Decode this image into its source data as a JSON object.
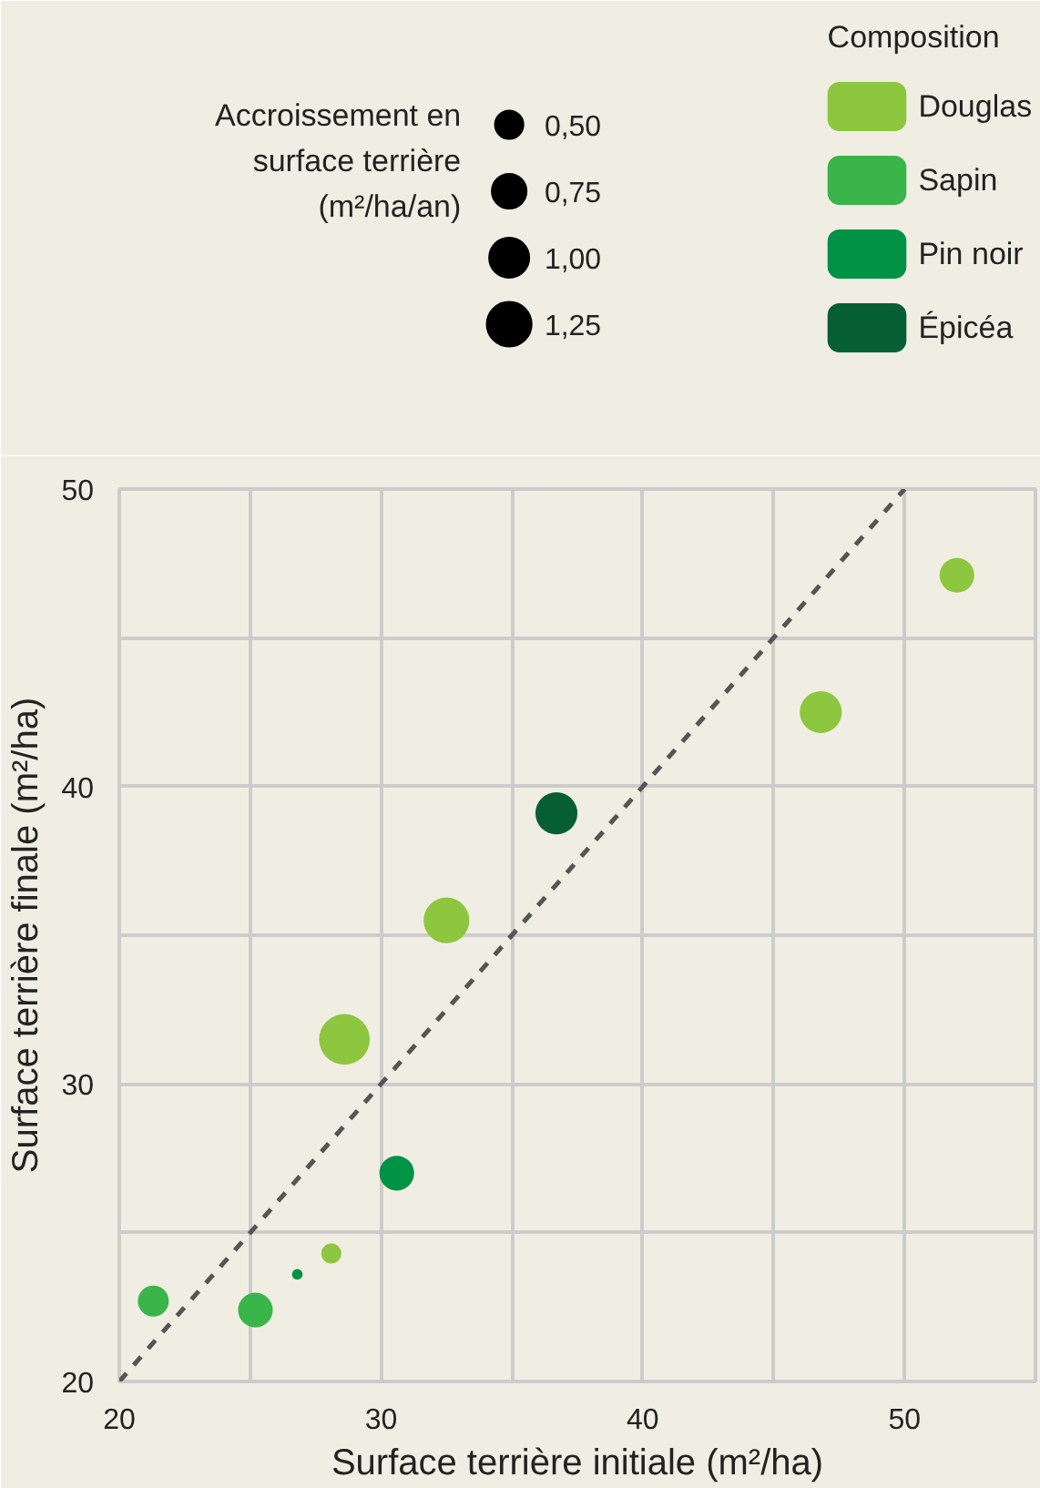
{
  "chart_data": {
    "type": "bubble",
    "xlabel": "Surface terrière initiale (m²/ha)",
    "ylabel": "Surface terrière finale (m²/ha)",
    "legend_title": "Composition",
    "annotations": [
      "Accroissement en\nsurface terrière\n(m²/ha/an)"
    ],
    "size_legend": [
      {
        "value": 0.5,
        "label": "0,50"
      },
      {
        "value": 0.75,
        "label": "0,75"
      },
      {
        "value": 1.0,
        "label": "1,00"
      },
      {
        "value": 1.25,
        "label": "1,25"
      }
    ],
    "xlim": [
      20,
      55
    ],
    "ylim": [
      20,
      50
    ],
    "xticks": [
      20,
      {
        "value": 25,
        "label": null
      },
      30,
      {
        "value": 35,
        "label": null
      },
      40,
      {
        "value": 45,
        "label": null
      },
      50,
      {
        "value": 55,
        "label": null
      }
    ],
    "yticks": [
      20,
      {
        "value": 25,
        "label": null
      },
      30,
      {
        "value": 35,
        "label": null
      },
      40,
      {
        "value": 45,
        "label": null
      },
      50
    ],
    "grid": true,
    "legend": "top right",
    "series": [
      {
        "name": "Douglas",
        "color": "#8dc63f",
        "x": [
          52.0,
          46.8,
          32.5,
          28.6,
          28.1
        ],
        "values": [
          47.1,
          42.5,
          35.5,
          31.5,
          24.3
        ],
        "sizes": [
          0.75,
          1.1,
          1.3,
          1.6,
          0.25
        ]
      },
      {
        "name": "Sapin",
        "color": "#39b54a",
        "x": [
          21.3,
          25.2
        ],
        "values": [
          22.7,
          22.4
        ],
        "sizes": [
          0.6,
          0.75
        ]
      },
      {
        "name": "Pin noir",
        "color": "#009245",
        "x": [
          30.6,
          26.8
        ],
        "values": [
          27.0,
          23.6
        ],
        "sizes": [
          0.75,
          0.07
        ]
      },
      {
        "name": "Épicéa",
        "color": "#065f32",
        "x": [
          36.7
        ],
        "values": [
          39.1
        ],
        "sizes": [
          1.1
        ]
      },
      {
        "type": "line",
        "color": "#555555",
        "line_style": "dashed",
        "x": [
          20,
          50
        ],
        "values": [
          20,
          50
        ]
      }
    ]
  }
}
